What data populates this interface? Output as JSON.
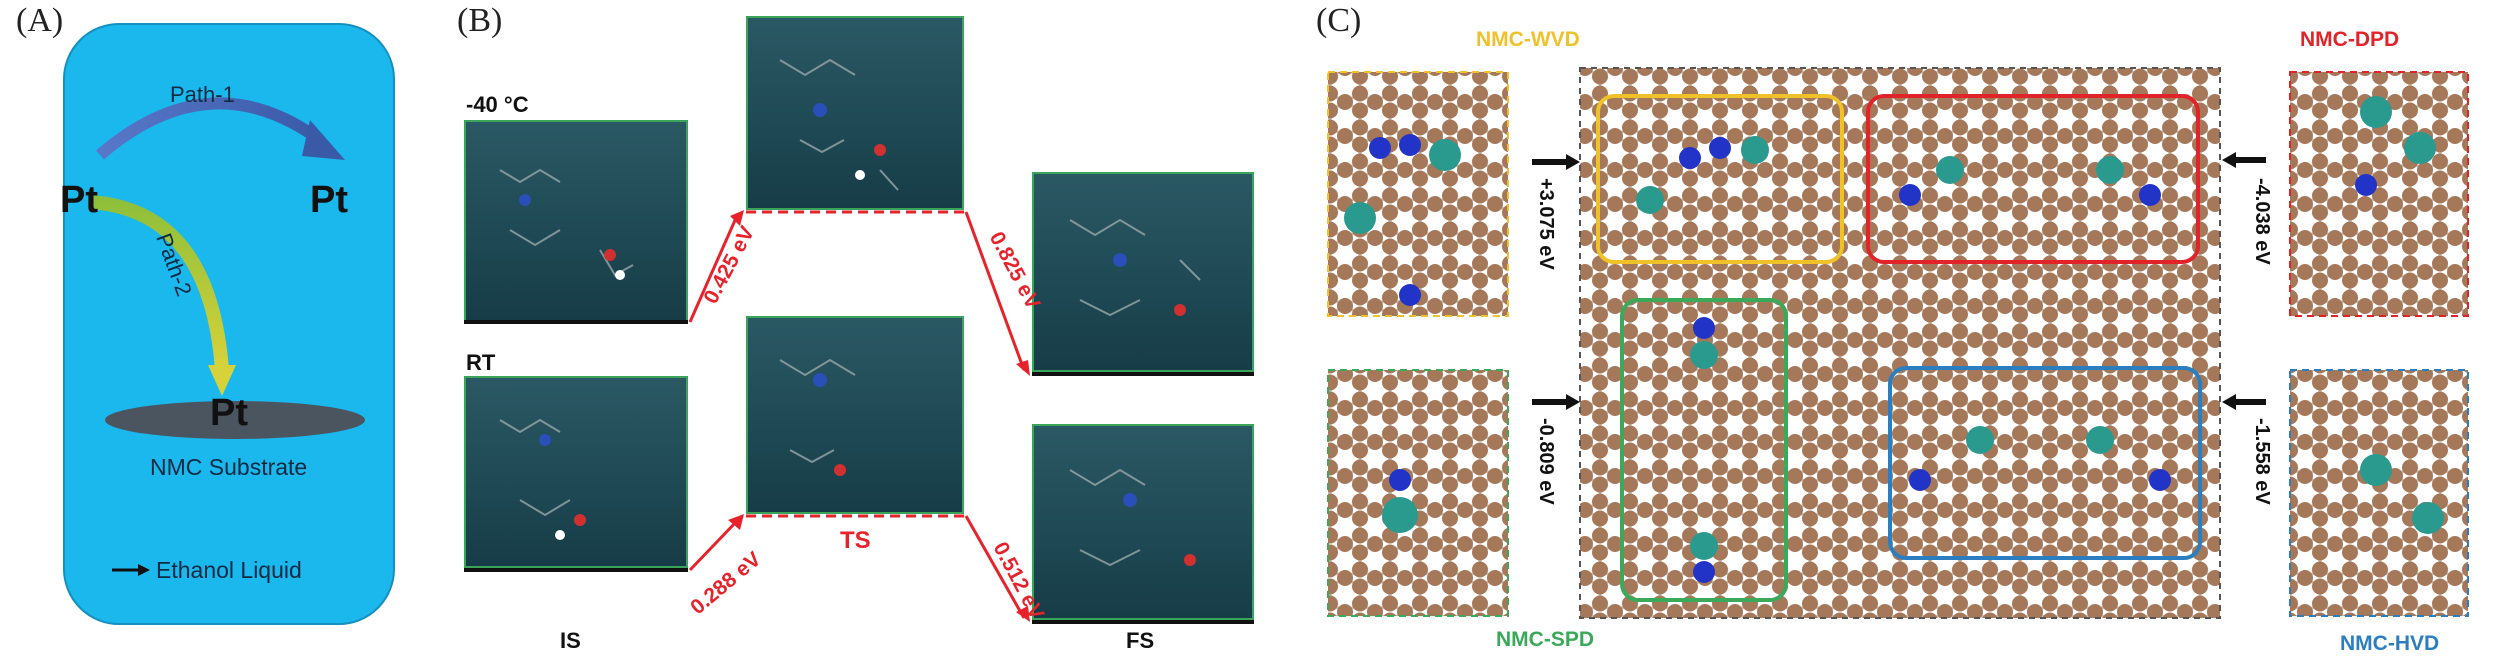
{
  "panel_a": {
    "label": "(A)",
    "pt_left": "Pt",
    "pt_right": "Pt",
    "pt_bottom": "Pt",
    "path1": "Path-1",
    "path2": "Path-2",
    "substrate": "NMC Substrate",
    "legend": "Ethanol Liquid",
    "colors": {
      "background": "#1ab8ec",
      "path1": "#3f63b8",
      "path2": "#8fb83b",
      "disk": "#4a5560"
    }
  },
  "panel_b": {
    "label": "(B)",
    "cond_low": "-40 °C",
    "cond_rt": "RT",
    "energies": {
      "upper_barrier": "0.425 eV",
      "upper_drop": "0.825 eV",
      "lower_barrier": "0.288 eV",
      "lower_drop": "0.512 eV"
    },
    "stages": {
      "is": "IS",
      "ts": "TS",
      "fs": "FS"
    },
    "colors": {
      "arrow": "#e8222b",
      "frame": "#3aa55a"
    }
  },
  "panel_c": {
    "label": "(C)",
    "site_wvd": "NMC-WVD",
    "site_dpd": "NMC-DPD",
    "site_spd": "NMC-SPD",
    "site_hvd": "NMC-HVD",
    "e_wvd": "+3.075 eV",
    "e_dpd": "-4.038 eV",
    "e_spd": "-0.809 eV",
    "e_hvd": "-1.558 eV",
    "colors": {
      "wvd": "#f0c22a",
      "dpd": "#e0242a",
      "spd": "#3aaa5a",
      "hvd": "#2b7fc0",
      "carbon": "#a5785a",
      "nitrogen": "#2233c8",
      "platinum": "#2a9a8e"
    }
  }
}
